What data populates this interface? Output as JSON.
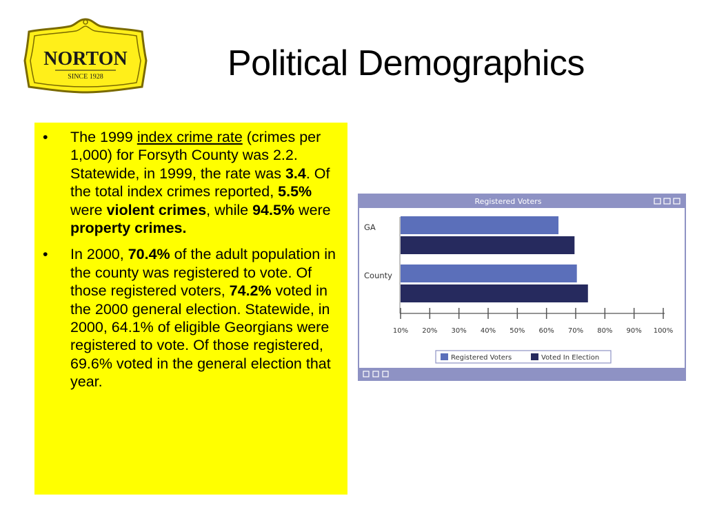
{
  "logo": {
    "name": "NORTON",
    "tagline": "SINCE 1928"
  },
  "slide": {
    "title": "Political Demographics"
  },
  "bullets": [
    {
      "segments": [
        {
          "text": "The 1999 ",
          "style": "normal"
        },
        {
          "text": "index crime rate",
          "style": "underline"
        },
        {
          "text": " (crimes per 1,000) for Forsyth County was 2.2. Statewide, in 1999, the rate was ",
          "style": "normal"
        },
        {
          "text": "3.4",
          "style": "bold"
        },
        {
          "text": ". Of the total index crimes reported, ",
          "style": "normal"
        },
        {
          "text": "5.5%",
          "style": "bold"
        },
        {
          "text": " were ",
          "style": "normal"
        },
        {
          "text": "violent crimes",
          "style": "bold"
        },
        {
          "text": ", while ",
          "style": "normal"
        },
        {
          "text": "94.5%",
          "style": "bold"
        },
        {
          "text": " were ",
          "style": "normal"
        },
        {
          "text": "property crimes.",
          "style": "bold"
        }
      ]
    },
    {
      "segments": [
        {
          "text": "In 2000, ",
          "style": "normal"
        },
        {
          "text": "70.4%",
          "style": "bold"
        },
        {
          "text": " of the adult population in the county was registered to vote. Of those registered voters, ",
          "style": "normal"
        },
        {
          "text": "74.2%",
          "style": "bold"
        },
        {
          "text": " voted in the 2000 general election. Statewide, in 2000, 64.1% of eligible Georgians were registered to vote. Of those registered, 69.6% voted in the general election that year.",
          "style": "normal"
        }
      ]
    }
  ],
  "chart_data": {
    "type": "bar",
    "orientation": "horizontal",
    "title": "Registered Voters",
    "categories": [
      "GA",
      "County"
    ],
    "series": [
      {
        "name": "Registered Voters",
        "values": [
          64.1,
          70.4
        ],
        "color": "#5b6fba"
      },
      {
        "name": "Voted In Election",
        "values": [
          69.6,
          74.2
        ],
        "color": "#262a5e"
      }
    ],
    "x_ticks": [
      "10%",
      "20%",
      "30%",
      "40%",
      "50%",
      "60%",
      "70%",
      "80%",
      "90%",
      "100%"
    ],
    "xlim": [
      10,
      100
    ],
    "legend": "bottom",
    "grid": false
  },
  "colors": {
    "text_box_bg": "#ffff00",
    "logo_bg": "#ffef1a",
    "chart_frame": "#8e92c4",
    "chart_bg": "#ffffff"
  }
}
